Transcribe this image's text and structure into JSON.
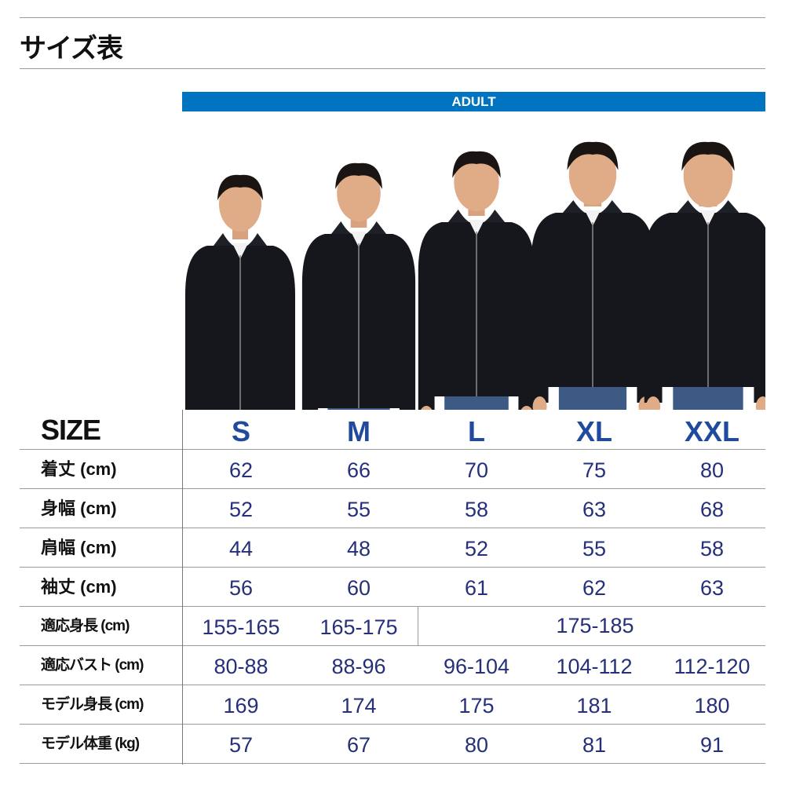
{
  "title": "サイズ表",
  "band_label": "ADULT",
  "colors": {
    "band": "#0074c0",
    "size_heading": "#1f4a9e",
    "values": "#26307a"
  },
  "table": {
    "header": {
      "label": "SIZE",
      "sizes": [
        "S",
        "M",
        "L",
        "XL",
        "XXL"
      ]
    },
    "rows": [
      {
        "label": "着丈 (cm)",
        "values": [
          "62",
          "66",
          "70",
          "75",
          "80"
        ]
      },
      {
        "label": "身幅 (cm)",
        "values": [
          "52",
          "55",
          "58",
          "63",
          "68"
        ]
      },
      {
        "label": "肩幅 (cm)",
        "values": [
          "44",
          "48",
          "52",
          "55",
          "58"
        ]
      },
      {
        "label": "袖丈 (cm)",
        "values": [
          "56",
          "60",
          "61",
          "62",
          "63"
        ]
      },
      {
        "label": "適応身長 (cm)",
        "values": [
          "155-165",
          "165-175",
          "175-185"
        ]
      },
      {
        "label": "適応バスト (cm)",
        "values": [
          "80-88",
          "88-96",
          "96-104",
          "104-112",
          "112-120"
        ]
      },
      {
        "label": "モデル身長 (cm)",
        "values": [
          "169",
          "174",
          "175",
          "181",
          "180"
        ]
      },
      {
        "label": "モデル体重 (kg)",
        "values": [
          "57",
          "67",
          "80",
          "81",
          "91"
        ]
      }
    ]
  }
}
